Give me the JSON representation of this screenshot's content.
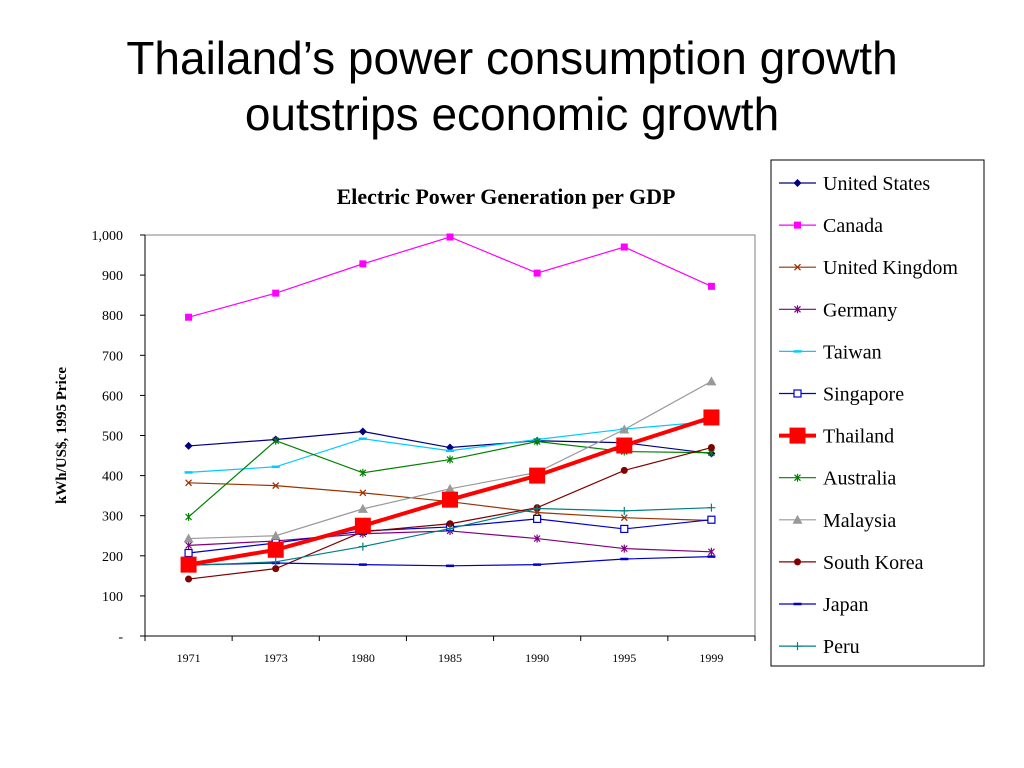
{
  "slide": {
    "title_line1": "Thailand’s power consumption growth",
    "title_line2": "outstrips economic growth"
  },
  "chart_data": {
    "type": "line",
    "title": "Electric Power Generation per GDP",
    "xlabel": "",
    "ylabel": "kWh/US$, 1995 Price",
    "ylim": [
      0,
      1000
    ],
    "yticks": [
      0,
      100,
      200,
      300,
      400,
      500,
      600,
      700,
      800,
      900,
      1000
    ],
    "ytick_labels": [
      "-",
      "100",
      "200",
      "300",
      "400",
      "500",
      "600",
      "700",
      "800",
      "900",
      "1,000"
    ],
    "categories": [
      "1971",
      "1973",
      "1980",
      "1985",
      "1990",
      "1995",
      "1999"
    ],
    "grid": false,
    "legend_position": "right",
    "series": [
      {
        "name": "United States",
        "color": "#000080",
        "marker": "diamond",
        "values": [
          474,
          490,
          510,
          470,
          487,
          482,
          455
        ]
      },
      {
        "name": "Canada",
        "color": "#FF00FF",
        "marker": "square",
        "values": [
          795,
          855,
          928,
          995,
          905,
          970,
          872
        ]
      },
      {
        "name": "United Kingdom",
        "color": "#993300",
        "marker": "x",
        "values": [
          382,
          375,
          357,
          335,
          308,
          295,
          288
        ]
      },
      {
        "name": "Germany",
        "color": "#800080",
        "marker": "star",
        "values": [
          226,
          237,
          255,
          262,
          243,
          218,
          210
        ]
      },
      {
        "name": "Taiwan",
        "color": "#00CCFF",
        "marker": "dash",
        "values": [
          408,
          422,
          492,
          462,
          490,
          516,
          535
        ]
      },
      {
        "name": "Singapore",
        "color": "#0000CC",
        "marker": "open-square",
        "values": [
          207,
          232,
          262,
          272,
          292,
          267,
          290
        ]
      },
      {
        "name": "Thailand",
        "color": "#FF0000",
        "marker": "big-square",
        "values": [
          178,
          215,
          275,
          340,
          400,
          475,
          545
        ]
      },
      {
        "name": "Australia",
        "color": "#008000",
        "marker": "star",
        "values": [
          297,
          487,
          407,
          440,
          485,
          460,
          457
        ]
      },
      {
        "name": "Malaysia",
        "color": "#999999",
        "marker": "triangle",
        "values": [
          243,
          250,
          317,
          367,
          408,
          515,
          635
        ]
      },
      {
        "name": "South Korea",
        "color": "#800000",
        "marker": "circle",
        "values": [
          142,
          168,
          260,
          280,
          320,
          413,
          470
        ]
      },
      {
        "name": "Japan",
        "color": "#0000CC",
        "marker": "dash",
        "values": [
          177,
          182,
          178,
          175,
          178,
          192,
          198
        ]
      },
      {
        "name": "Peru",
        "color": "#008080",
        "marker": "plus",
        "values": [
          176,
          185,
          223,
          268,
          318,
          312,
          320
        ]
      }
    ]
  }
}
